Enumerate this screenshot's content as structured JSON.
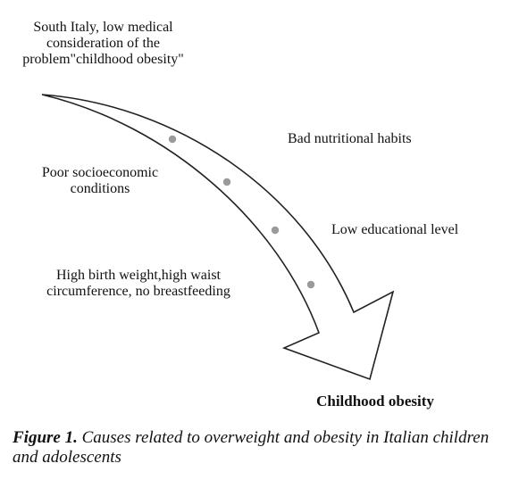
{
  "diagram": {
    "start_label": "South Italy, low medical consideration of the problem\"childhood obesity\"",
    "causes": [
      "Bad nutritional habits",
      "Poor socioeconomic conditions",
      "Low educational level",
      "High birth weight,high  waist circumference,  no breastfeeding"
    ],
    "outcome": "Childhood  obesity",
    "colors": {
      "arrow_outline": "#222222",
      "arrow_fill": "#ffffff",
      "dot": "#9a9a9a",
      "text": "#111111"
    }
  },
  "caption": {
    "figure_number": "Figure 1.",
    "text": " Causes related to overweight and obesity in Italian children and adolescents"
  }
}
